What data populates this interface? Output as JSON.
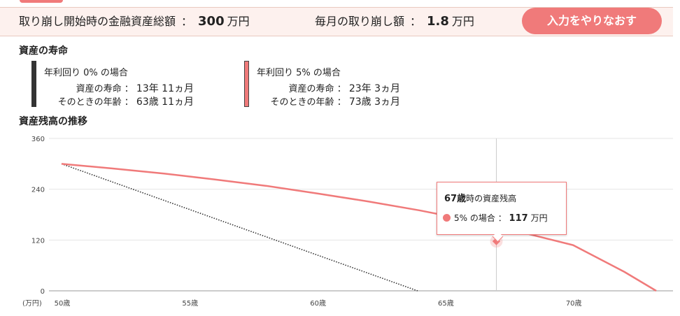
{
  "summary": {
    "initial_label": "取り崩し開始時の金融資産総額",
    "initial_value": "300",
    "initial_unit": "万円",
    "monthly_label": "毎月の取り崩し額",
    "monthly_value": "1.8",
    "monthly_unit": "万円",
    "colon": "："
  },
  "redo_button_label": "入力をやりなおす",
  "lifespan_section_title": "資産の寿命",
  "scenarios": [
    {
      "heading_prefix": "年利回り",
      "rate": "0%",
      "heading_suffix": "の場合",
      "lifespan_label": "資産の寿命",
      "lifespan_value": "13年 11ヵ月",
      "age_label": "そのときの年齢",
      "age_value": "63歳 11ヵ月",
      "color": "#333333"
    },
    {
      "heading_prefix": "年利回り",
      "rate": "5%",
      "heading_suffix": "の場合",
      "lifespan_label": "資産の寿命",
      "lifespan_value": "23年 3ヵ月",
      "age_label": "そのときの年齢",
      "age_value": "73歳 3ヵ月",
      "color": "#f07a7a"
    }
  ],
  "chart_section_title": "資産残高の推移",
  "tooltip": {
    "age": "67歳",
    "title_suffix": "時の資産残高",
    "series_label": "5% の場合",
    "colon": "：",
    "value": "117",
    "unit": "万円"
  },
  "chart_data": {
    "type": "line",
    "title": "資産残高の推移",
    "ylabel": "(万円)",
    "xlim": [
      50,
      73.25
    ],
    "ylim": [
      0,
      360
    ],
    "y_ticks": [
      0,
      120,
      240,
      360
    ],
    "x_ticks": [
      50,
      55,
      60,
      65,
      70
    ],
    "x_tick_labels": [
      "50歳",
      "55歳",
      "60歳",
      "65歳",
      "70歳"
    ],
    "y_tick_labels": [
      "0",
      "120",
      "240",
      "360"
    ],
    "grid": true,
    "highlight_x": 67,
    "series": [
      {
        "rate": "0%",
        "color": "#333333",
        "style": "dotted",
        "x": [
          50,
          63.92
        ],
        "y": [
          300,
          0
        ]
      },
      {
        "rate": "5%",
        "color": "#f07a7a",
        "style": "solid",
        "x": [
          50,
          52,
          54,
          56,
          58,
          60,
          62,
          64,
          66,
          67,
          68,
          70,
          72,
          73.25
        ],
        "y": [
          300,
          289,
          277,
          263,
          248,
          230,
          211,
          190,
          166,
          117,
          138,
          108,
          45,
          0
        ]
      }
    ]
  }
}
